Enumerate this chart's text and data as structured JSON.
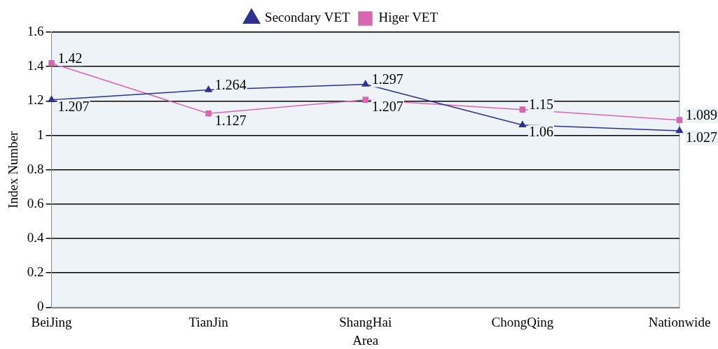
{
  "chart_data": {
    "type": "line",
    "xlabel": "Area",
    "ylabel": "Index Number",
    "categories": [
      "BeiJing",
      "TianJin",
      "ShangHai",
      "ChongQing",
      "Nationwide"
    ],
    "series": [
      {
        "name": "Secondary VET",
        "color": "#2e3192",
        "marker": "triangle",
        "values": [
          1.207,
          1.264,
          1.297,
          1.06,
          1.027
        ]
      },
      {
        "name": "Higer VET",
        "color": "#d966b0",
        "marker": "square",
        "values": [
          1.42,
          1.127,
          1.207,
          1.15,
          1.089
        ]
      }
    ],
    "ylim": [
      0,
      1.6
    ],
    "yticks": [
      0,
      0.2,
      0.4,
      0.6,
      0.8,
      1,
      1.2,
      1.4,
      1.6
    ],
    "grid": "y",
    "legend": "top",
    "data_labels": true
  }
}
